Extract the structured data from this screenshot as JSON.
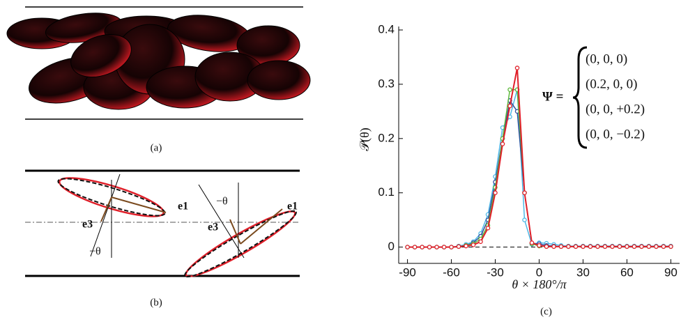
{
  "panel_a": {
    "caption": "(a)"
  },
  "panel_b": {
    "caption": "(b)",
    "labels": [
      "e3",
      "e1",
      "−θ",
      "−θ",
      "e1",
      "e3"
    ]
  },
  "chart_data": {
    "type": "line",
    "caption": "(c)",
    "x_label": "θ × 180°/π",
    "y_label": "𝒫(θ)",
    "legend_title": "Ψ =",
    "x": [
      -90,
      -85,
      -80,
      -75,
      -70,
      -65,
      -60,
      -55,
      -50,
      -45,
      -40,
      -35,
      -30,
      -25,
      -20,
      -15,
      -10,
      -5,
      0,
      5,
      10,
      15,
      20,
      25,
      30,
      35,
      40,
      45,
      50,
      55,
      60,
      65,
      70,
      75,
      80,
      85,
      90
    ],
    "series": [
      {
        "name": "(0, 0, 0)",
        "color": "#e0202a",
        "values": [
          0,
          0,
          0,
          0,
          0,
          0,
          0,
          0.001,
          0.002,
          0.004,
          0.01,
          0.035,
          0.1,
          0.19,
          0.26,
          0.33,
          0.1,
          0.008,
          0.003,
          0.001,
          0.001,
          0.001,
          0.001,
          0.001,
          0.001,
          0.001,
          0.001,
          0.001,
          0.001,
          0.001,
          0.001,
          0.001,
          0.001,
          0.001,
          0.001,
          0.001,
          0.001
        ]
      },
      {
        "name": "(0.2, 0, 0)",
        "color": "#5cb83a",
        "values": [
          0,
          0,
          0,
          0,
          0,
          0,
          0,
          0.001,
          0.003,
          0.006,
          0.015,
          0.04,
          0.11,
          0.2,
          0.29,
          0.29,
          0.1,
          0.006,
          0.002,
          0.001,
          0.001,
          0.001,
          0.001,
          0.001,
          0.001,
          0.001,
          0.001,
          0.001,
          0.001,
          0.001,
          0.001,
          0.001,
          0.001,
          0.001,
          0.001,
          0.001,
          0.001
        ]
      },
      {
        "name": "(0, 0, +0.2)",
        "color": "#2f4e9e",
        "values": [
          0,
          0,
          0,
          0,
          0,
          0,
          0,
          0.001,
          0.003,
          0.008,
          0.02,
          0.05,
          0.12,
          0.2,
          0.27,
          0.25,
          0.1,
          0.007,
          0.006,
          0.003,
          0.002,
          0.001,
          0.001,
          0.001,
          0.001,
          0.001,
          0.001,
          0.001,
          0.001,
          0.001,
          0.001,
          0.001,
          0.001,
          0.001,
          0.001,
          0.001,
          0.001
        ]
      },
      {
        "name": "(0, 0, −0.2)",
        "color": "#4fb8e6",
        "values": [
          0,
          0,
          0,
          0,
          0,
          0,
          0,
          0.002,
          0.005,
          0.01,
          0.025,
          0.06,
          0.13,
          0.22,
          0.24,
          0.29,
          0.05,
          0.005,
          0.008,
          0.007,
          0.005,
          0.003,
          0.002,
          0.002,
          0.002,
          0.002,
          0.002,
          0.002,
          0.002,
          0.002,
          0.002,
          0.002,
          0.002,
          0.002,
          0.002,
          0.002,
          0.002
        ]
      }
    ],
    "reference_line": 0,
    "xlim": [
      -96,
      96
    ],
    "ylim": [
      -0.03,
      0.4
    ],
    "xticks": [
      -90,
      -60,
      -30,
      0,
      30,
      60,
      90
    ],
    "yticks": [
      0,
      0.1,
      0.2,
      0.3,
      0.4
    ]
  }
}
